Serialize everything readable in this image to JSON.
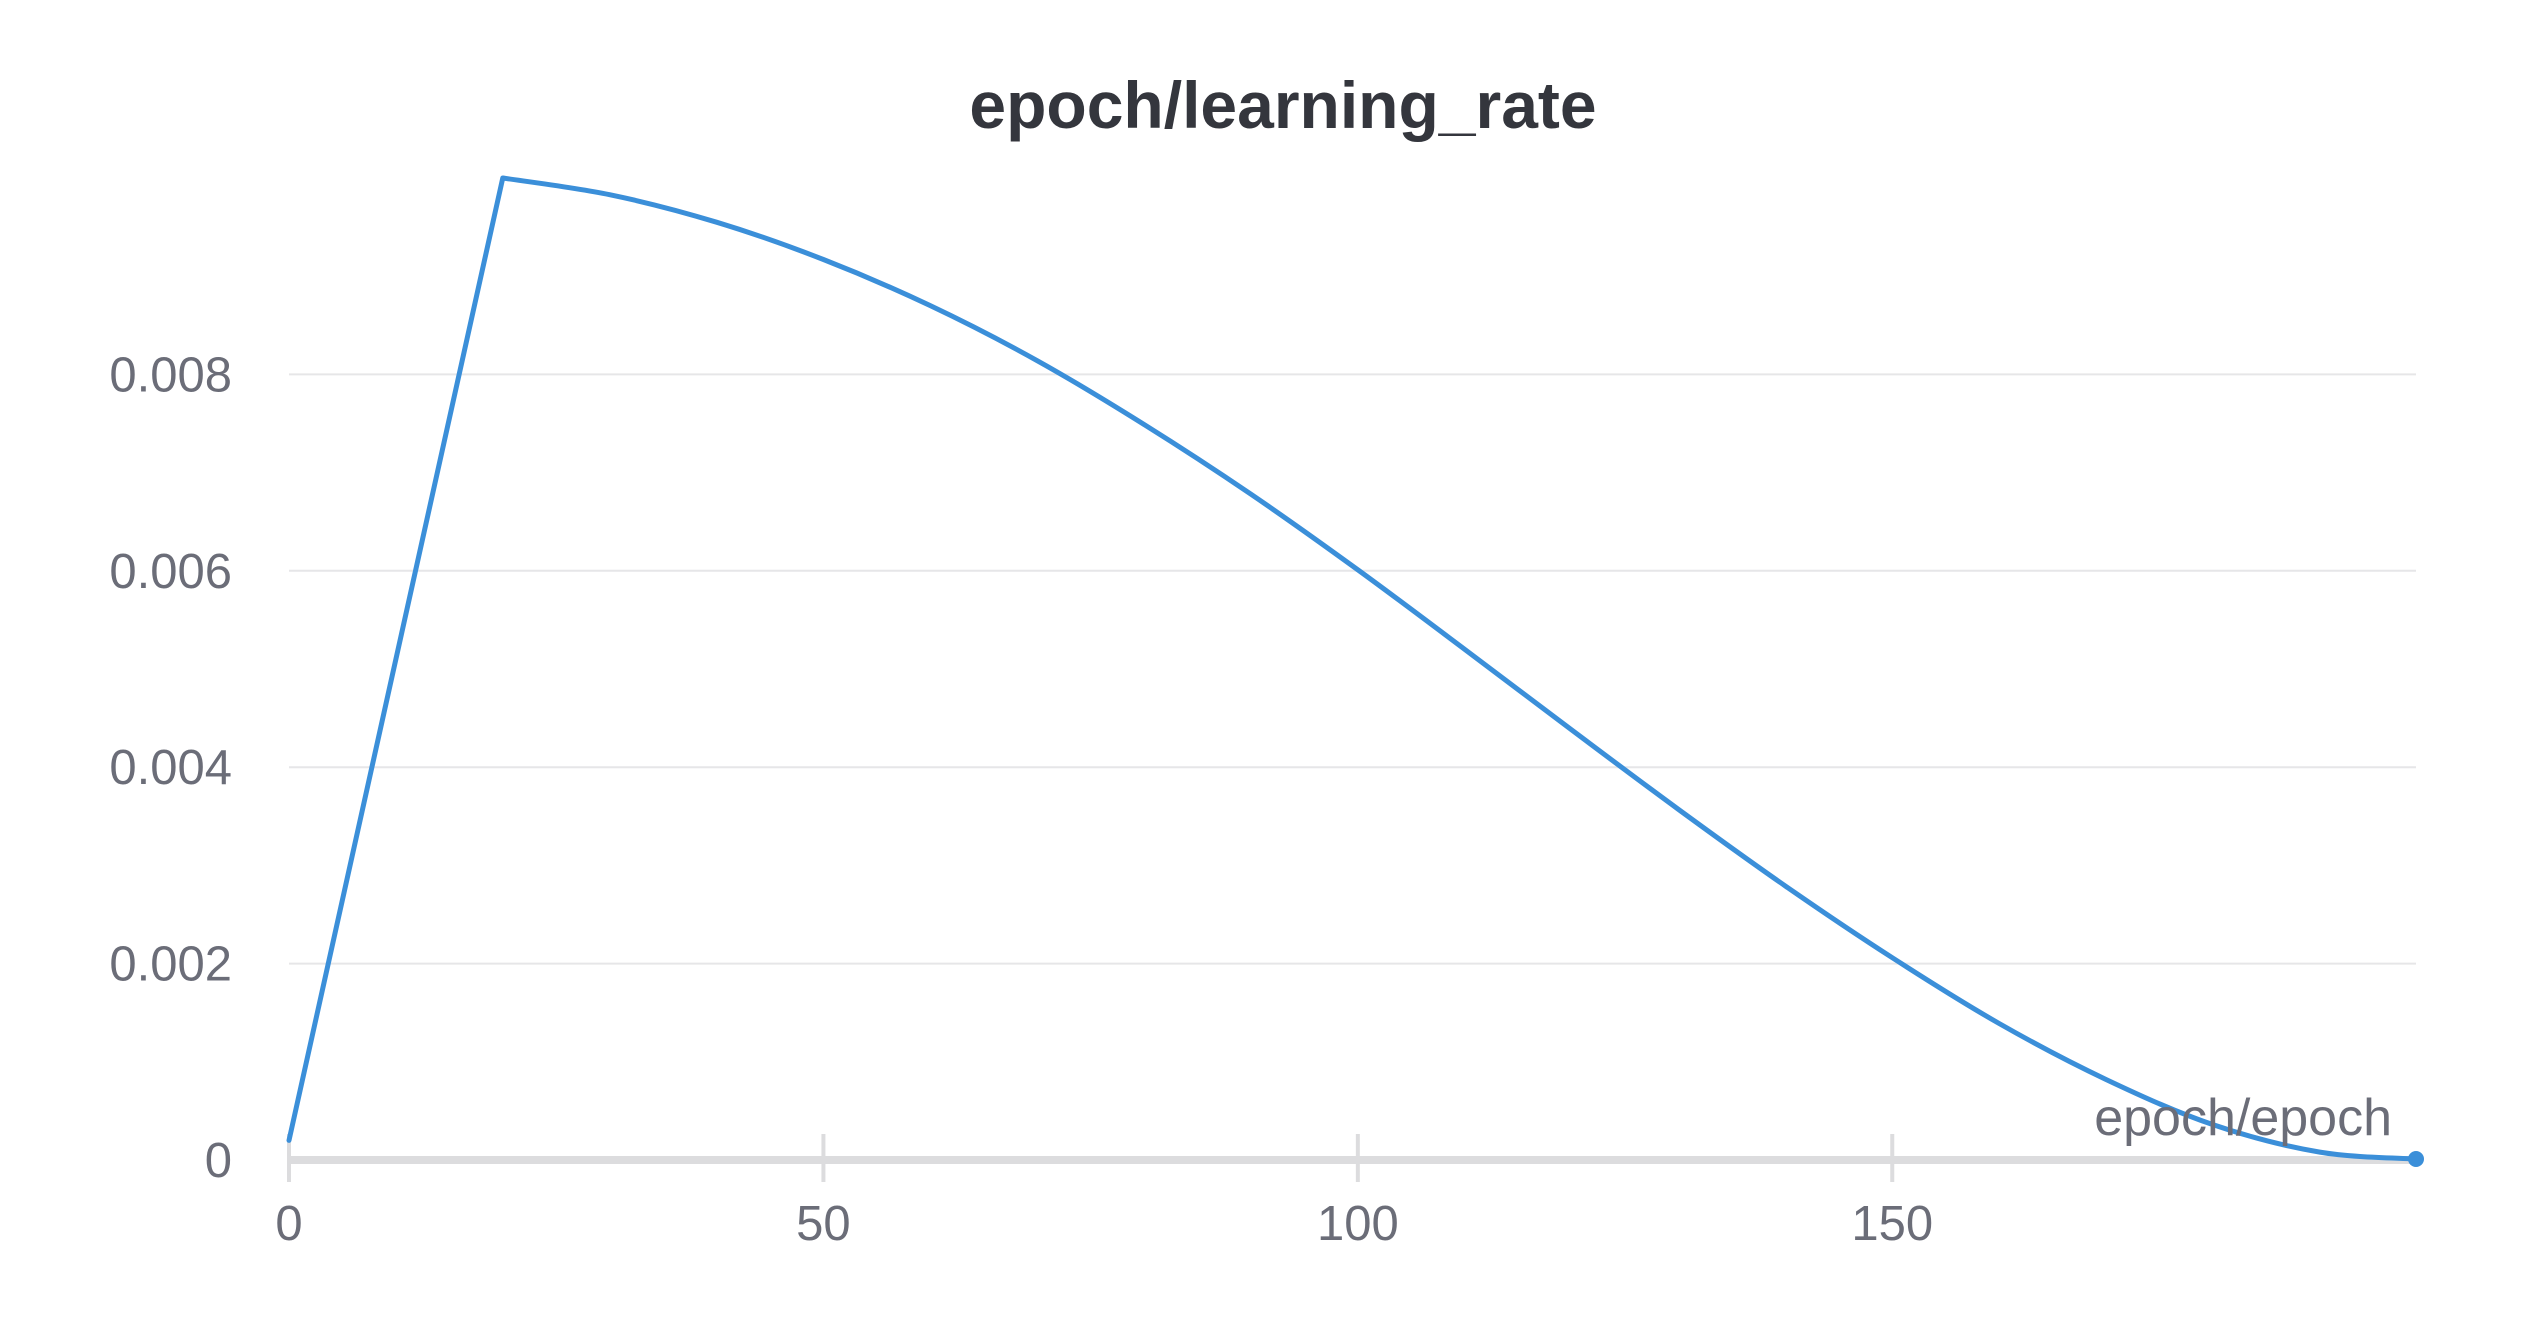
{
  "chart_data": {
    "type": "line",
    "title": "epoch/learning_rate",
    "xlabel": "epoch/epoch",
    "ylabel": "",
    "xlim": [
      0,
      199
    ],
    "ylim": [
      0,
      0.01
    ],
    "x_ticks": [
      0,
      50,
      100,
      150
    ],
    "x_tick_labels": [
      "0",
      "50",
      "100",
      "150"
    ],
    "y_ticks": [
      0,
      0.002,
      0.004,
      0.006,
      0.008
    ],
    "y_tick_labels": [
      "0",
      "0.002",
      "0.004",
      "0.006",
      "0.008"
    ],
    "grid": true,
    "legend": "none",
    "series_color": "#3b8fd9",
    "series": [
      {
        "x": [
          0,
          10,
          20,
          30,
          40,
          50,
          60,
          70,
          80,
          90,
          100,
          110,
          120,
          130,
          140,
          150,
          160,
          170,
          180,
          190,
          199
        ],
        "values": [
          0.0002,
          0.0051,
          0.01,
          0.00983,
          0.00955,
          0.00917,
          0.0087,
          0.00814,
          0.00749,
          0.00678,
          0.00601,
          0.0052,
          0.00438,
          0.00357,
          0.00279,
          0.00206,
          0.00139,
          0.00082,
          0.00036,
          8e-05,
          1e-05
        ]
      }
    ]
  }
}
